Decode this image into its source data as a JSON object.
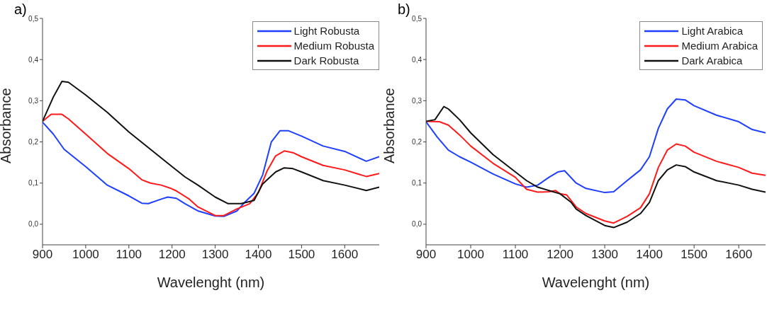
{
  "chart_data": [
    {
      "type": "line",
      "title": "a)",
      "xlabel": "Wavelenght (nm)",
      "ylabel": "Absorbance",
      "xlim": [
        900,
        1680
      ],
      "xticks": [
        900,
        1000,
        1100,
        1200,
        1300,
        1400,
        1500,
        1600
      ],
      "ylim": [
        -0.05,
        0.5
      ],
      "yticks": [
        {
          "value": 0,
          "label": "0,0"
        },
        {
          "value": 0.1,
          "label": "0,1"
        },
        {
          "value": 0.2,
          "label": "0,2"
        },
        {
          "value": 0.3,
          "label": "0,3"
        },
        {
          "value": 0.4,
          "label": "0,4"
        },
        {
          "value": 0.5,
          "label": "0,5"
        }
      ],
      "legend": "top right",
      "marker": "none",
      "line_style": "solid",
      "series": [
        {
          "name": "Light Robusta",
          "color": "#1f3fff",
          "x": [
            900,
            925,
            950,
            1000,
            1050,
            1100,
            1130,
            1145,
            1175,
            1190,
            1210,
            1230,
            1261,
            1300,
            1320,
            1350,
            1370,
            1390,
            1410,
            1430,
            1450,
            1470,
            1500,
            1550,
            1600,
            1650,
            1680
          ],
          "values": [
            0.248,
            0.219,
            0.182,
            0.14,
            0.095,
            0.069,
            0.051,
            0.05,
            0.061,
            0.066,
            0.063,
            0.05,
            0.032,
            0.02,
            0.019,
            0.032,
            0.055,
            0.075,
            0.12,
            0.2,
            0.227,
            0.227,
            0.214,
            0.19,
            0.177,
            0.153,
            0.164
          ]
        },
        {
          "name": "Medium Robusta",
          "color": "#ff1a1a",
          "x": [
            900,
            920,
            945,
            960,
            1000,
            1050,
            1100,
            1130,
            1150,
            1175,
            1195,
            1210,
            1240,
            1260,
            1300,
            1320,
            1350,
            1380,
            1400,
            1420,
            1440,
            1460,
            1480,
            1500,
            1550,
            1600,
            1650,
            1680
          ],
          "values": [
            0.25,
            0.267,
            0.267,
            0.256,
            0.219,
            0.172,
            0.135,
            0.108,
            0.1,
            0.095,
            0.088,
            0.081,
            0.061,
            0.042,
            0.021,
            0.021,
            0.037,
            0.05,
            0.077,
            0.129,
            0.166,
            0.178,
            0.174,
            0.164,
            0.143,
            0.132,
            0.116,
            0.123
          ]
        },
        {
          "name": "Dark Robusta",
          "color": "#111111",
          "x": [
            900,
            925,
            945,
            960,
            1000,
            1050,
            1100,
            1150,
            1200,
            1230,
            1260,
            1300,
            1330,
            1360,
            1390,
            1410,
            1440,
            1460,
            1480,
            1500,
            1550,
            1600,
            1650,
            1680
          ],
          "values": [
            0.25,
            0.309,
            0.347,
            0.345,
            0.314,
            0.272,
            0.224,
            0.182,
            0.14,
            0.115,
            0.095,
            0.066,
            0.05,
            0.05,
            0.058,
            0.098,
            0.127,
            0.137,
            0.135,
            0.127,
            0.106,
            0.095,
            0.082,
            0.09
          ]
        }
      ]
    },
    {
      "type": "line",
      "title": "b)",
      "xlabel": "Wavelenght (nm)",
      "ylabel": "Absorbance",
      "xlim": [
        900,
        1660
      ],
      "xticks": [
        900,
        1000,
        1100,
        1200,
        1300,
        1400,
        1500,
        1600
      ],
      "ylim": [
        -0.05,
        0.5
      ],
      "yticks": [
        {
          "value": 0,
          "label": "0,0"
        },
        {
          "value": 0.1,
          "label": "0,1"
        },
        {
          "value": 0.2,
          "label": "0,2"
        },
        {
          "value": 0.3,
          "label": "0,3"
        },
        {
          "value": 0.4,
          "label": "0,4"
        },
        {
          "value": 0.5,
          "label": "0,5"
        }
      ],
      "legend": "top right",
      "marker": "none",
      "line_style": "solid",
      "series": [
        {
          "name": "Light Arabica",
          "color": "#1f3fff",
          "x": [
            900,
            925,
            950,
            975,
            1000,
            1050,
            1100,
            1125,
            1150,
            1175,
            1195,
            1210,
            1236,
            1258,
            1300,
            1320,
            1350,
            1380,
            1400,
            1420,
            1440,
            1460,
            1480,
            1500,
            1550,
            1600,
            1630,
            1660
          ],
          "values": [
            0.249,
            0.212,
            0.18,
            0.164,
            0.151,
            0.122,
            0.098,
            0.09,
            0.095,
            0.114,
            0.127,
            0.13,
            0.1,
            0.087,
            0.077,
            0.079,
            0.106,
            0.132,
            0.164,
            0.233,
            0.28,
            0.304,
            0.302,
            0.288,
            0.265,
            0.249,
            0.23,
            0.222
          ]
        },
        {
          "name": "Medium Arabica",
          "color": "#ff1a1a",
          "x": [
            900,
            930,
            950,
            975,
            1000,
            1050,
            1100,
            1125,
            1150,
            1175,
            1190,
            1200,
            1215,
            1236,
            1258,
            1300,
            1320,
            1350,
            1380,
            1400,
            1420,
            1440,
            1460,
            1480,
            1500,
            1550,
            1600,
            1630,
            1660
          ],
          "values": [
            0.25,
            0.249,
            0.241,
            0.217,
            0.19,
            0.148,
            0.114,
            0.085,
            0.078,
            0.079,
            0.082,
            0.074,
            0.071,
            0.042,
            0.026,
            0.008,
            0.003,
            0.019,
            0.04,
            0.074,
            0.138,
            0.18,
            0.195,
            0.19,
            0.175,
            0.153,
            0.138,
            0.124,
            0.119
          ]
        },
        {
          "name": "Dark Arabica",
          "color": "#111111",
          "x": [
            900,
            920,
            940,
            950,
            975,
            1000,
            1050,
            1100,
            1125,
            1150,
            1175,
            1200,
            1225,
            1236,
            1258,
            1300,
            1320,
            1350,
            1380,
            1400,
            1420,
            1440,
            1460,
            1480,
            1500,
            1550,
            1600,
            1630,
            1660
          ],
          "values": [
            0.25,
            0.254,
            0.286,
            0.28,
            0.254,
            0.222,
            0.169,
            0.127,
            0.106,
            0.09,
            0.082,
            0.074,
            0.053,
            0.037,
            0.021,
            -0.003,
            -0.008,
            0.005,
            0.026,
            0.053,
            0.106,
            0.132,
            0.144,
            0.14,
            0.127,
            0.106,
            0.095,
            0.085,
            0.078
          ]
        }
      ]
    }
  ]
}
